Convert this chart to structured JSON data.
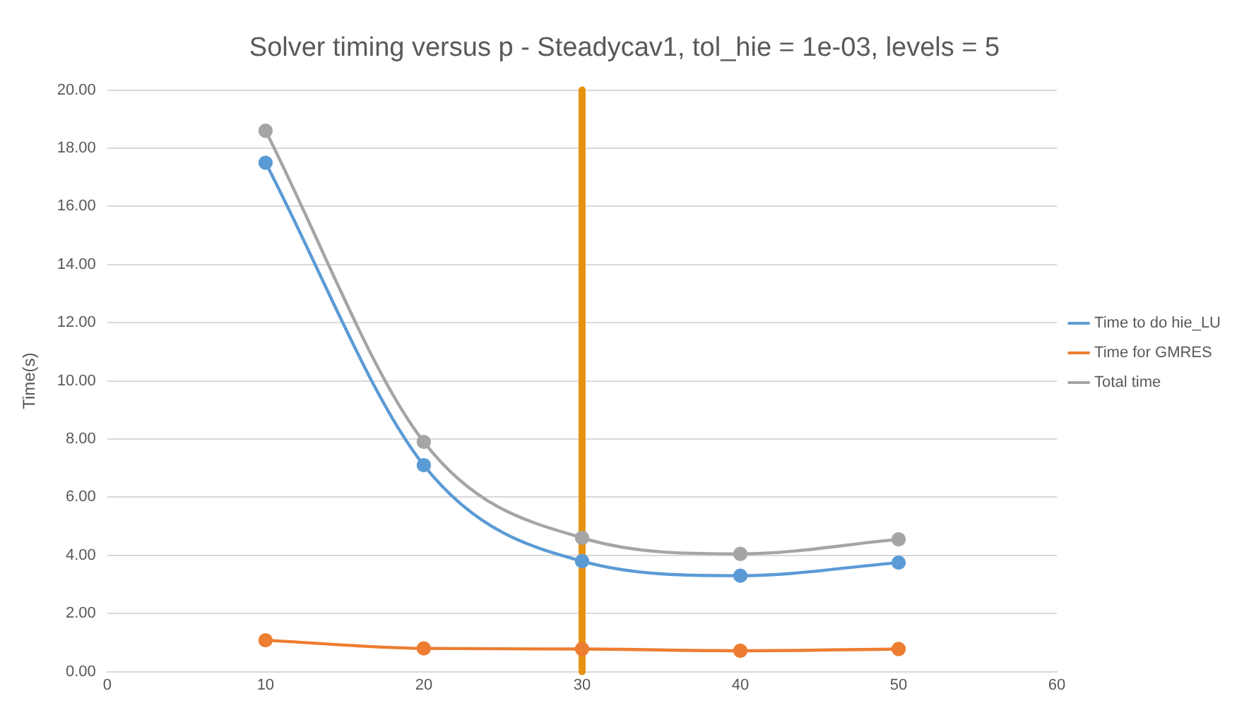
{
  "chart_data": {
    "type": "line",
    "title": "Solver timing versus p - Steadycav1, tol_hie = 1e-03, levels = 5",
    "ylabel": "Time(s)",
    "x": [
      10,
      20,
      30,
      40,
      50
    ],
    "series": [
      {
        "name": "Time to do hie_LU",
        "color": "#5b9bd5",
        "values": [
          17.5,
          7.1,
          3.8,
          3.3,
          3.75
        ]
      },
      {
        "name": "Time for GMRES",
        "color": "#ed7d31",
        "values": [
          1.08,
          0.8,
          0.78,
          0.72,
          0.78
        ]
      },
      {
        "name": "Total time",
        "color": "#a5a5a5",
        "values": [
          18.6,
          7.9,
          4.6,
          4.05,
          4.55
        ]
      }
    ],
    "xlim": [
      0,
      60
    ],
    "xticks": [
      0,
      10,
      20,
      30,
      40,
      50,
      60
    ],
    "ylim": [
      0,
      20
    ],
    "yticks": [
      {
        "value": 0,
        "label": "0.00"
      },
      {
        "value": 2,
        "label": "2.00"
      },
      {
        "value": 4,
        "label": "4.00"
      },
      {
        "value": 6,
        "label": "6.00"
      },
      {
        "value": 8,
        "label": "8.00"
      },
      {
        "value": 10,
        "label": "10.00"
      },
      {
        "value": 12,
        "label": "12.00"
      },
      {
        "value": 14,
        "label": "14.00"
      },
      {
        "value": 16,
        "label": "16.00"
      },
      {
        "value": 18,
        "label": "18.00"
      },
      {
        "value": 20,
        "label": "20.00"
      }
    ],
    "ref_lines": [
      {
        "axis": "x",
        "value": 30,
        "color": "#e69312"
      }
    ],
    "grid": "y",
    "legend": "right",
    "marker": "circle",
    "line_style": "solid"
  }
}
